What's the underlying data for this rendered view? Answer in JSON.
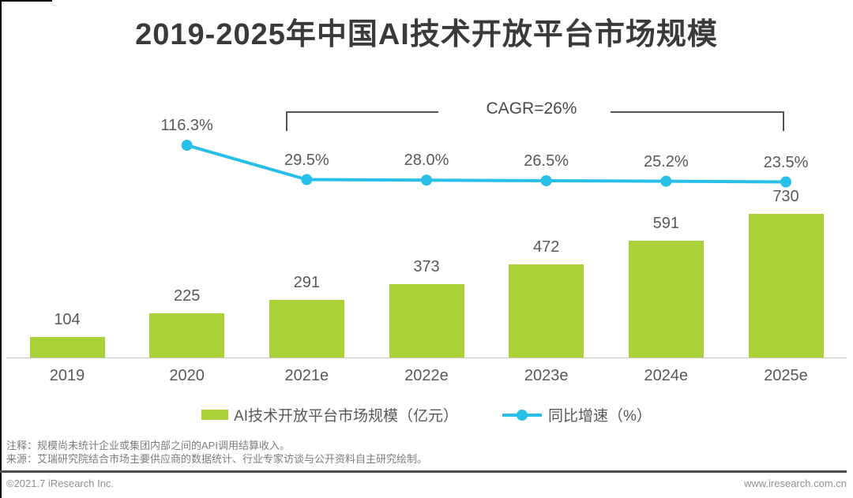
{
  "title": "2019-2025年中国AI技术开放平台市场规模",
  "chart_data": {
    "type": "bar",
    "categories": [
      "2019",
      "2020",
      "2021e",
      "2022e",
      "2023e",
      "2024e",
      "2025e"
    ],
    "series": [
      {
        "name": "AI技术开放平台市场规模（亿元）",
        "type": "bar",
        "values": [
          104,
          225,
          291,
          373,
          472,
          591,
          730
        ],
        "color": "#ABD138"
      },
      {
        "name": "同比增速（%）",
        "type": "line",
        "values": [
          null,
          116.3,
          29.5,
          28.0,
          26.5,
          25.2,
          23.5
        ],
        "labels": [
          null,
          "116.3%",
          "29.5%",
          "28.0%",
          "26.5%",
          "25.2%",
          "23.5%"
        ],
        "color": "#29BFE8"
      }
    ],
    "annotation": {
      "label": "CAGR=26%",
      "from": "2021e",
      "to": "2025e"
    },
    "xlabel": "",
    "ylabel": "",
    "ylim": [
      0,
      800
    ],
    "grid": false,
    "legend_position": "bottom"
  },
  "colors": {
    "title": "#3A3A3A",
    "axis_text": "#595959",
    "notes_text": "#7D7D7D",
    "bracket": "#555555"
  },
  "notes": {
    "note": "注释：规模尚未统计企业或集团内部之间的API调用结算收入。",
    "source": "来源：艾瑞研究院结合市场主要供应商的数据统计、行业专家访谈与公开资料自主研究绘制。"
  },
  "footer": {
    "copyright": "©2021.7 iResearch Inc.",
    "website": "www.iresearch.com.cn"
  }
}
